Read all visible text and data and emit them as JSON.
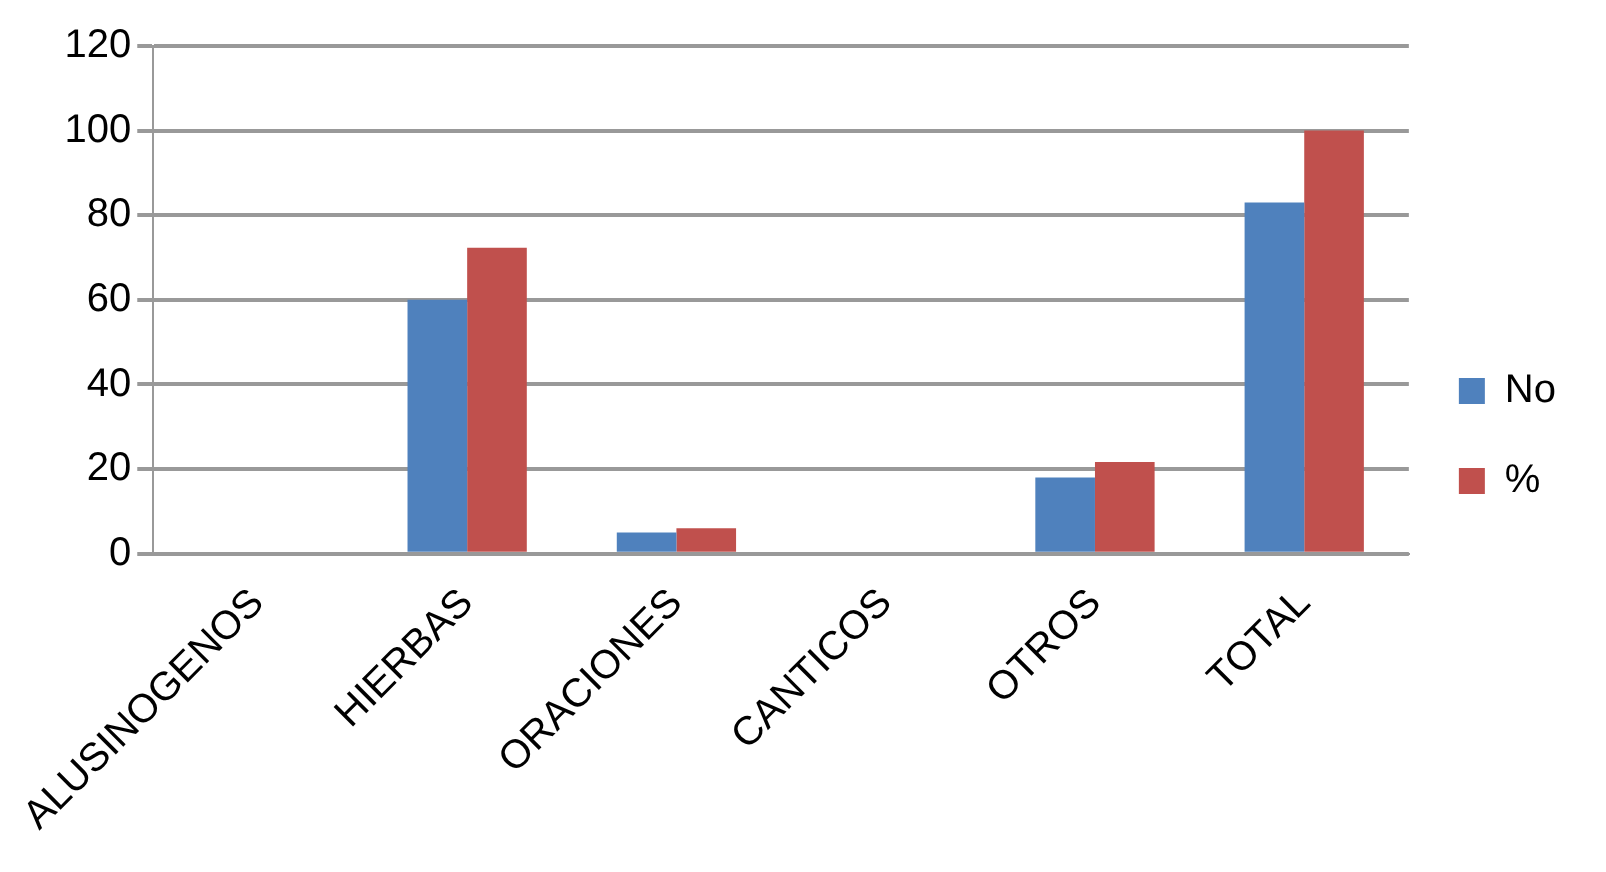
{
  "chart_data": {
    "type": "bar",
    "categories": [
      "ALUSINOGENOS",
      "HIERBAS",
      "ORACIONES",
      "CANTICOS",
      "OTROS",
      "TOTAL"
    ],
    "series": [
      {
        "name": "No",
        "color": "#4f81bd",
        "values": [
          0,
          60,
          5,
          0,
          18,
          83
        ]
      },
      {
        "name": "%",
        "color": "#c0504d",
        "values": [
          0,
          72.3,
          6,
          0,
          21.7,
          100
        ]
      }
    ],
    "ylim": [
      0,
      120
    ],
    "yticks": [
      0,
      20,
      40,
      60,
      80,
      100,
      120
    ],
    "grid": "y",
    "legend": "right"
  }
}
